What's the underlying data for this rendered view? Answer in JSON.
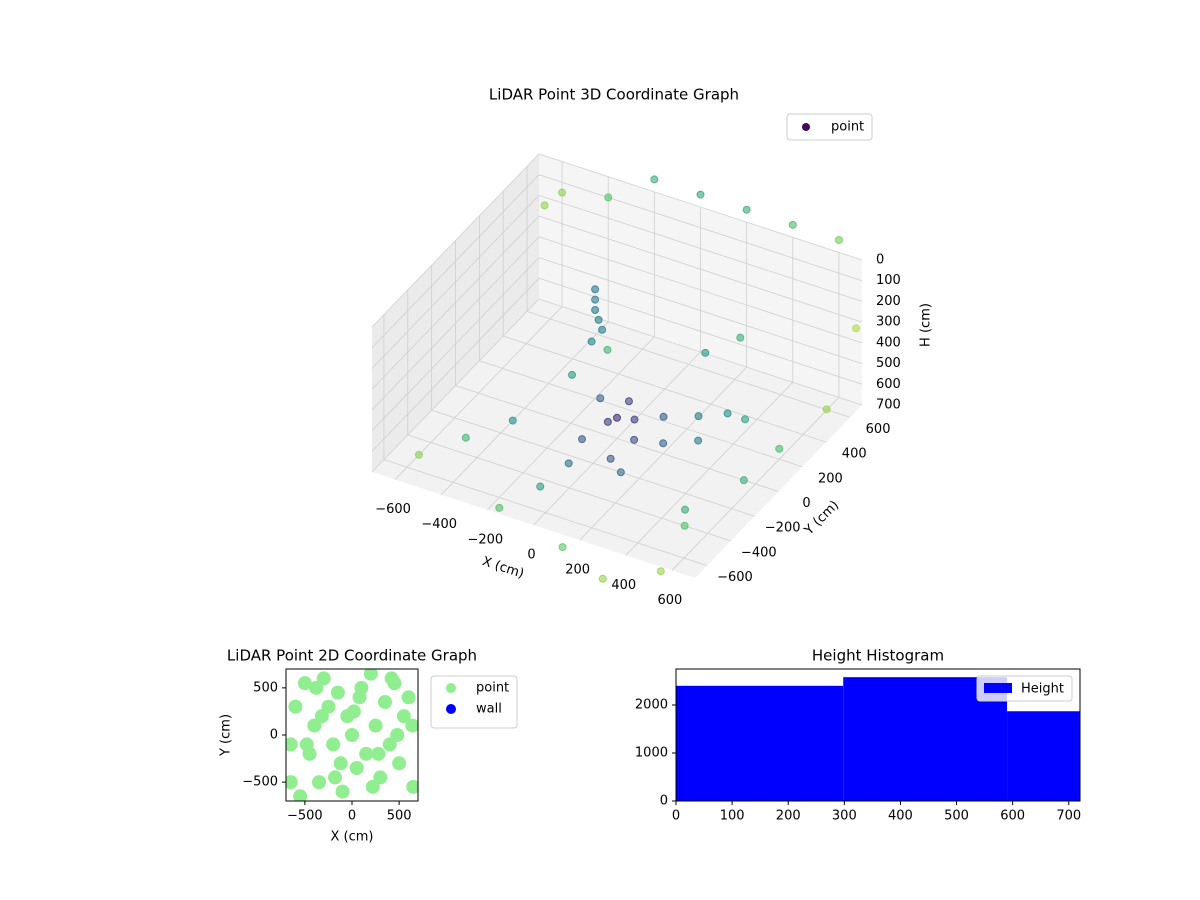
{
  "chart_data": [
    {
      "type": "scatter3d",
      "title": "LiDAR Point 3D Coordinate Graph",
      "xlabel": "X (cm)",
      "ylabel": "Y (cm)",
      "zlabel": "H (cm)",
      "xlim": [
        -700,
        700
      ],
      "ylim": [
        -700,
        700
      ],
      "zlim": [
        700,
        0
      ],
      "xticks": [
        {
          "value": -600,
          "label": "−600"
        },
        {
          "value": -400,
          "label": "−400"
        },
        {
          "value": -200,
          "label": "−200"
        },
        0,
        200,
        400,
        600
      ],
      "yticks": [
        {
          "value": -600,
          "label": "−600"
        },
        {
          "value": -400,
          "label": "−400"
        },
        {
          "value": -200,
          "label": "−200"
        },
        0,
        200,
        400,
        600
      ],
      "zticks": [
        0,
        100,
        200,
        300,
        400,
        500,
        600,
        700
      ],
      "grid": true,
      "legend": "upper right",
      "cmap": "viridis",
      "series": [
        {
          "name": "point",
          "color": "#46085c",
          "x": [
            -250,
            -250,
            -250,
            -240,
            -230,
            -260,
            0,
            50,
            -50,
            100,
            0,
            150,
            -100,
            200,
            300,
            400,
            350,
            250,
            -150,
            50,
            120,
            -80,
            -500,
            -600,
            -400,
            -300,
            500,
            600,
            650,
            550,
            450,
            0,
            200,
            400,
            600,
            -200,
            -400,
            -600,
            -650,
            -200,
            100,
            300,
            500,
            -100,
            150,
            250,
            -350,
            700
          ],
          "y": [
            300,
            300,
            300,
            310,
            320,
            290,
            0,
            50,
            20,
            -50,
            100,
            100,
            -100,
            0,
            100,
            300,
            250,
            200,
            150,
            -150,
            -200,
            -250,
            -300,
            -500,
            -100,
            500,
            -400,
            200,
            500,
            0,
            -300,
            700,
            700,
            700,
            700,
            700,
            700,
            700,
            650,
            -600,
            -650,
            -700,
            -600,
            -450,
            450,
            550,
            300,
            650
          ],
          "z": [
            250,
            300,
            350,
            400,
            450,
            500,
            600,
            620,
            650,
            640,
            580,
            600,
            680,
            650,
            660,
            640,
            600,
            620,
            650,
            690,
            700,
            700,
            700,
            700,
            700,
            680,
            700,
            650,
            620,
            700,
            700,
            -60,
            -60,
            -60,
            -60,
            -60,
            100,
            150,
            200,
            750,
            800,
            850,
            800,
            700,
            500,
            450,
            700,
            300
          ]
        }
      ]
    },
    {
      "type": "scatter",
      "title": "LiDAR Point 2D Coordinate Graph",
      "xlabel": "X (cm)",
      "ylabel": "Y (cm)",
      "xlim": [
        -700,
        700
      ],
      "ylim": [
        -700,
        700
      ],
      "xticks": [
        {
          "value": -500,
          "label": "−500"
        },
        0,
        500
      ],
      "yticks": [
        {
          "value": -500,
          "label": "−500"
        },
        0,
        500
      ],
      "legend": "outside upper right",
      "series": [
        {
          "name": "point",
          "color": "#90ee90",
          "x": [
            -650,
            -600,
            -550,
            -500,
            -450,
            -400,
            -350,
            -300,
            -250,
            -200,
            -150,
            -100,
            -50,
            0,
            50,
            100,
            150,
            200,
            250,
            300,
            350,
            400,
            450,
            500,
            550,
            600,
            650,
            -480,
            -320,
            -120,
            80,
            280,
            480,
            -380,
            -180,
            20,
            220,
            420,
            -650,
            640
          ],
          "y": [
            -500,
            300,
            -650,
            550,
            -200,
            100,
            -500,
            600,
            300,
            -100,
            450,
            -600,
            200,
            0,
            -350,
            500,
            -200,
            650,
            100,
            -450,
            350,
            -100,
            550,
            -300,
            200,
            400,
            -550,
            -100,
            200,
            -300,
            400,
            -200,
            0,
            500,
            -450,
            250,
            -550,
            600,
            -100,
            100
          ]
        },
        {
          "name": "wall",
          "color": "#0000ff",
          "x": [],
          "y": []
        }
      ]
    },
    {
      "type": "histogram",
      "title": "Height Histogram",
      "bins": [
        0,
        298,
        590,
        720
      ],
      "xlim": [
        0,
        720
      ],
      "ylim": [
        0,
        2750
      ],
      "xticks": [
        0,
        100,
        200,
        300,
        400,
        500,
        600,
        700
      ],
      "yticks": [
        0,
        1000,
        2000
      ],
      "legend": "upper right",
      "series": [
        {
          "name": "Height",
          "color": "#0000ff",
          "values": [
            2400,
            2580,
            1870
          ]
        }
      ]
    }
  ]
}
